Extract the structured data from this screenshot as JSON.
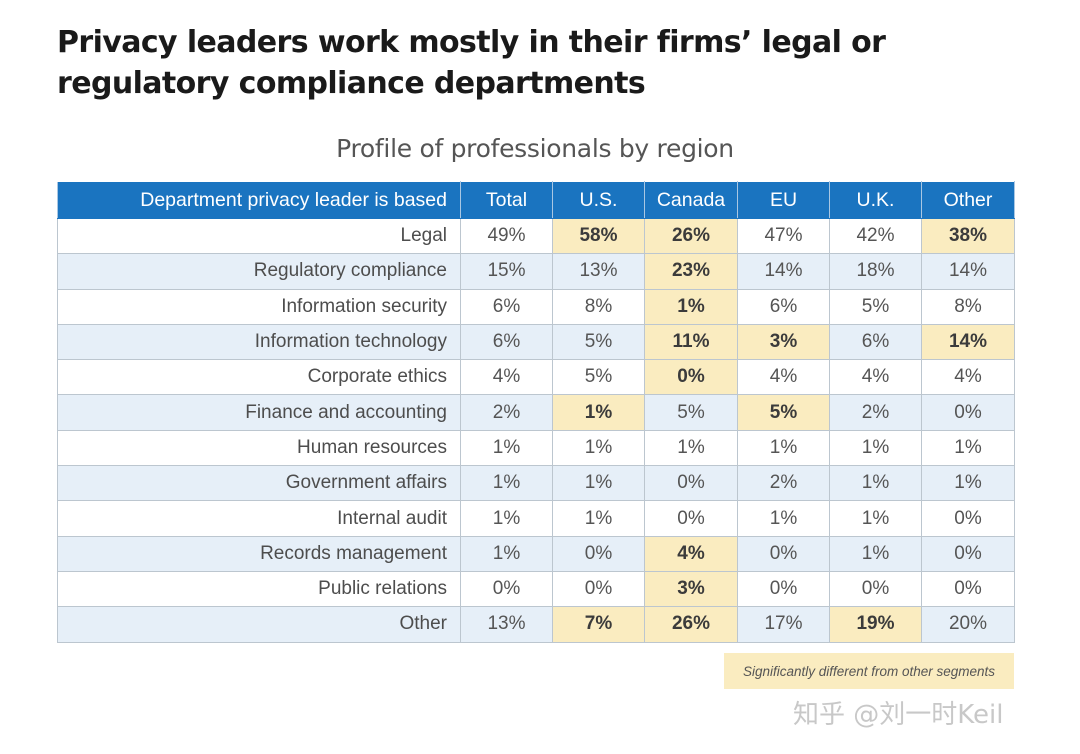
{
  "title": "Privacy leaders work mostly in their firms’ legal or regulatory compliance departments",
  "subtitle": "Profile of professionals by region",
  "legend_note": "Significantly different from other segments",
  "watermark": "知乎 @刘一时Keil",
  "colors": {
    "header": "#1a74c0",
    "highlight": "#faecc0",
    "stripe": "#e6eff8"
  },
  "chart_data": {
    "type": "table",
    "title": "Profile of professionals by region",
    "row_header": "Department privacy leader is based",
    "columns": [
      "Total",
      "U.S.",
      "Canada",
      "EU",
      "U.K.",
      "Other"
    ],
    "rows": [
      {
        "label": "Legal",
        "values": [
          "49%",
          "58%",
          "26%",
          "47%",
          "42%",
          "38%"
        ],
        "significant": [
          false,
          true,
          true,
          false,
          false,
          true
        ]
      },
      {
        "label": "Regulatory compliance",
        "values": [
          "15%",
          "13%",
          "23%",
          "14%",
          "18%",
          "14%"
        ],
        "significant": [
          false,
          false,
          true,
          false,
          false,
          false
        ]
      },
      {
        "label": "Information security",
        "values": [
          "6%",
          "8%",
          "1%",
          "6%",
          "5%",
          "8%"
        ],
        "significant": [
          false,
          false,
          true,
          false,
          false,
          false
        ]
      },
      {
        "label": "Information technology",
        "values": [
          "6%",
          "5%",
          "11%",
          "3%",
          "6%",
          "14%"
        ],
        "significant": [
          false,
          false,
          true,
          true,
          false,
          true
        ]
      },
      {
        "label": "Corporate ethics",
        "values": [
          "4%",
          "5%",
          "0%",
          "4%",
          "4%",
          "4%"
        ],
        "significant": [
          false,
          false,
          true,
          false,
          false,
          false
        ]
      },
      {
        "label": "Finance and accounting",
        "values": [
          "2%",
          "1%",
          "5%",
          "5%",
          "2%",
          "0%"
        ],
        "significant": [
          false,
          true,
          false,
          true,
          false,
          false
        ]
      },
      {
        "label": "Human resources",
        "values": [
          "1%",
          "1%",
          "1%",
          "1%",
          "1%",
          "1%"
        ],
        "significant": [
          false,
          false,
          false,
          false,
          false,
          false
        ]
      },
      {
        "label": "Government affairs",
        "values": [
          "1%",
          "1%",
          "0%",
          "2%",
          "1%",
          "1%"
        ],
        "significant": [
          false,
          false,
          false,
          false,
          false,
          false
        ]
      },
      {
        "label": "Internal audit",
        "values": [
          "1%",
          "1%",
          "0%",
          "1%",
          "1%",
          "0%"
        ],
        "significant": [
          false,
          false,
          false,
          false,
          false,
          false
        ]
      },
      {
        "label": "Records management",
        "values": [
          "1%",
          "0%",
          "4%",
          "0%",
          "1%",
          "0%"
        ],
        "significant": [
          false,
          false,
          true,
          false,
          false,
          false
        ]
      },
      {
        "label": "Public relations",
        "values": [
          "0%",
          "0%",
          "3%",
          "0%",
          "0%",
          "0%"
        ],
        "significant": [
          false,
          false,
          true,
          false,
          false,
          false
        ]
      },
      {
        "label": "Other",
        "values": [
          "13%",
          "7%",
          "26%",
          "17%",
          "19%",
          "20%"
        ],
        "significant": [
          false,
          true,
          true,
          false,
          true,
          false
        ]
      }
    ]
  }
}
